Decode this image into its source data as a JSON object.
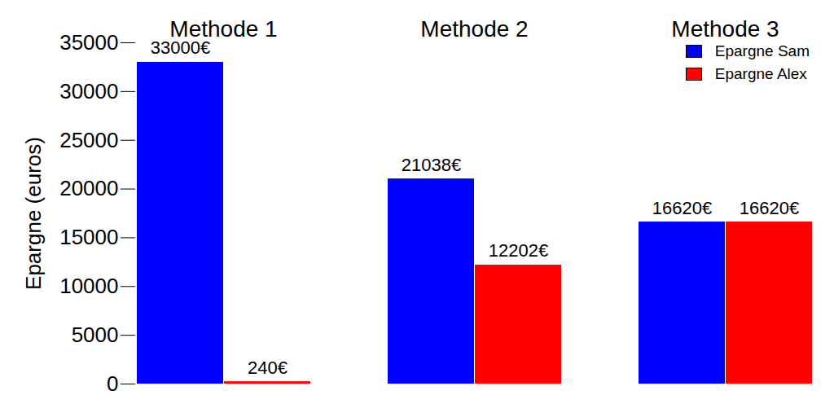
{
  "chart_data": {
    "type": "bar",
    "y_label": "Epargne (euros)",
    "categories": [
      "Methode 1",
      "Methode 2",
      "Methode 3"
    ],
    "series": [
      {
        "name": "Epargne Sam",
        "color": "#0000ff",
        "values": [
          33000,
          21038,
          16620
        ],
        "value_labels": [
          "33000€",
          "21038€",
          "16620€"
        ]
      },
      {
        "name": "Epargne Alex",
        "color": "#ff0000",
        "values": [
          240,
          12202,
          16620
        ],
        "value_labels": [
          "240€",
          "12202€",
          "16620€"
        ]
      }
    ],
    "ylim": [
      0,
      35000
    ],
    "yticks": [
      0,
      5000,
      10000,
      15000,
      20000,
      25000,
      30000,
      35000
    ],
    "grid": false,
    "legend": "top-right",
    "data_labels": true
  }
}
